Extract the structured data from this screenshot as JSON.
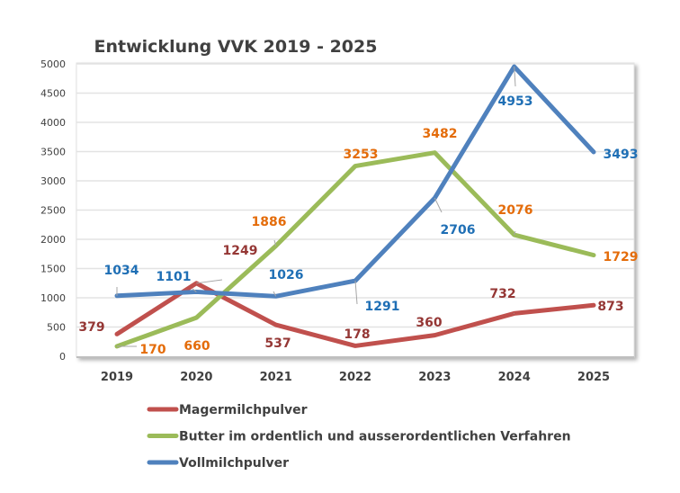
{
  "chart_data": {
    "type": "line",
    "title": "Entwicklung VVK 2019 - 2025",
    "xlabel": "",
    "ylabel": "",
    "categories": [
      "2019",
      "2020",
      "2021",
      "2022",
      "2023",
      "2024",
      "2025"
    ],
    "ylim": [
      0,
      5000
    ],
    "yticks": [
      "0",
      "500",
      "1000",
      "1500",
      "2000",
      "2500",
      "3000",
      "3500",
      "4000",
      "4500",
      "5000"
    ],
    "grid": true,
    "legend_position": "bottom",
    "series": [
      {
        "name": "Magermilchpulver",
        "color": "#c0504d",
        "label_color": "#953735",
        "values": [
          379,
          1249,
          537,
          178,
          360,
          732,
          873
        ]
      },
      {
        "name": "Butter im ordentlich und ausserordentlichen Verfahren",
        "color": "#9bbb59",
        "label_color": "#e46c0a",
        "values": [
          170,
          660,
          1886,
          3253,
          3482,
          2076,
          1729
        ]
      },
      {
        "name": "Vollmilchpulver",
        "color": "#4f81bd",
        "label_color": "#1f6fb5",
        "values": [
          1034,
          1101,
          1026,
          1291,
          2706,
          4953,
          3493
        ]
      }
    ]
  }
}
